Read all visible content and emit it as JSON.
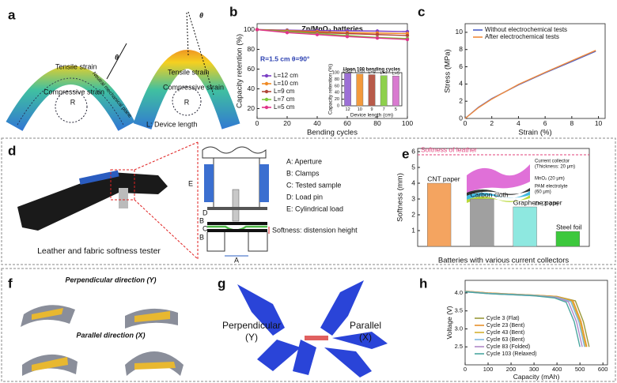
{
  "panel_labels": [
    "a",
    "b",
    "c",
    "d",
    "e",
    "f",
    "g",
    "h"
  ],
  "panel_a": {
    "tensile": "Tensile strain",
    "compressive": "Compressive strain",
    "neutral": "Neutral mechanical plane",
    "radius": "R",
    "angle": "θ",
    "length_note": "L: Device length"
  },
  "panel_d": {
    "caption": "Leather and fabric softness tester",
    "legend": [
      "A: Aperture",
      "B: Clamps",
      "C: Tested sample",
      "D: Load pin",
      "E: Cylindrical load"
    ],
    "schematic_labels": [
      "E",
      "D",
      "B",
      "C",
      "B",
      "A"
    ],
    "softness_note": "Softness: distension height"
  },
  "panel_f": {
    "perpendicular": "Perpendicular direction (Y)",
    "parallel": "Parallel direction (X)"
  },
  "panel_g": {
    "perpendicular": [
      "Perpendicular",
      "(Y)"
    ],
    "parallel": [
      "Parallel",
      "(X)"
    ]
  },
  "chart_data": [
    {
      "type": "line",
      "title": "Zn/MnO₂ batteries",
      "x_label": "Bending cycles",
      "y_label": "Capacity retention (%)",
      "annotation": "R=1.5 cm θ=90°",
      "markers": true,
      "x": [
        0,
        20,
        40,
        60,
        80,
        100
      ],
      "xlim": [
        0,
        100
      ],
      "xticks": [
        0,
        20,
        40,
        60,
        80,
        100
      ],
      "ylim": [
        10,
        106
      ],
      "yticks": [
        20,
        40,
        60,
        80,
        100
      ],
      "series": [
        {
          "name": "L=12 cm",
          "color": "#7b3fc4",
          "values": [
            100,
            99.5,
            99,
            98.8,
            98.5,
            98
          ]
        },
        {
          "name": "L=10 cm",
          "color": "#f08a24",
          "values": [
            100,
            99,
            98,
            97,
            96.5,
            96
          ]
        },
        {
          "name": "L=9 cm",
          "color": "#b0473a",
          "values": [
            100,
            98.5,
            97,
            96,
            95,
            94
          ]
        },
        {
          "name": "L=7 cm",
          "color": "#7cc83a",
          "values": [
            100,
            98,
            96,
            94,
            92,
            91
          ]
        },
        {
          "name": "L=5 cm",
          "color": "#e0348a",
          "values": [
            100,
            97,
            95,
            93,
            91.5,
            90
          ]
        }
      ]
    },
    {
      "type": "bar",
      "title": "Upon 100 bending cycles",
      "x_label": "Device length (cm)",
      "y_label": "Capacity retention (%)",
      "categories": [
        "12",
        "10",
        "9",
        "7",
        "5"
      ],
      "bar_labels": [
        "L=12",
        "L=10",
        "L=9",
        "L=7",
        "L=5"
      ],
      "values": [
        98,
        96,
        94,
        91,
        90
      ],
      "colors": [
        "#9c6fd6",
        "#f39a3c",
        "#b85a4a",
        "#8ed04c",
        "#d97ad0"
      ],
      "ylim": [
        0,
        100
      ],
      "yticks": [
        0,
        20,
        40,
        60,
        80,
        100
      ]
    },
    {
      "type": "line",
      "x_label": "Strain (%)",
      "y_label": "Stress (MPa)",
      "x": [
        0,
        1,
        2,
        4,
        6,
        8,
        9.8
      ],
      "xlim": [
        0,
        10.5
      ],
      "xticks": [
        0,
        2,
        4,
        6,
        8,
        10
      ],
      "ylim": [
        0,
        11
      ],
      "yticks": [
        0,
        2,
        4,
        6,
        8,
        10
      ],
      "series": [
        {
          "name": "Without electrochemical tests",
          "color": "#4b5fc8",
          "values": [
            0,
            1.3,
            2.3,
            3.9,
            5.3,
            6.6,
            7.8
          ]
        },
        {
          "name": "After electrochemical tests",
          "color": "#f08a3c",
          "values": [
            0,
            1.25,
            2.25,
            3.95,
            5.35,
            6.7,
            7.9
          ]
        }
      ]
    },
    {
      "type": "bar",
      "x_label": "Batteries with various current collectors",
      "y_label": "Softness (mm)",
      "categories": [
        "CNT paper",
        "Carbon cloth",
        "Graphene paper",
        "Steel foil"
      ],
      "values": [
        4,
        3,
        2.5,
        0.95
      ],
      "colors": [
        "#f4a460",
        "#a0a0a0",
        "#8ee8e0",
        "#3cc83c"
      ],
      "reference": {
        "label": "Softness of leather",
        "value": 5.8
      },
      "layer_labels": [
        "Current collector",
        "(Thickness: 20 μm)",
        "MnO₂ (20 μm)",
        "PAM electrolyte",
        "(60 μm)",
        "Zn (20 μm)"
      ],
      "ylim": [
        0,
        6.2
      ],
      "yticks": [
        1,
        2,
        3,
        4,
        5,
        6
      ]
    },
    {
      "type": "line",
      "x_label": "Capacity (mAh)",
      "y_label": "Voltage (V)",
      "xlim": [
        0,
        620
      ],
      "xticks": [
        0,
        100,
        200,
        300,
        400,
        500,
        600
      ],
      "ylim": [
        2.0,
        4.35
      ],
      "yticks": [
        2.5,
        {
          "value": 3,
          "label": "3.0"
        },
        3.5,
        {
          "value": 4,
          "label": "4.0"
        }
      ],
      "series": [
        {
          "name": "Cycle 3 (Flat)",
          "color": "#9a9a3a",
          "x": [
            0,
            100,
            200,
            300,
            400,
            480,
            515,
            540
          ],
          "values": [
            4.05,
            4.0,
            3.97,
            3.94,
            3.9,
            3.78,
            3.2,
            2.5
          ]
        },
        {
          "name": "Cycle 23 (Bent)",
          "color": "#e8902a",
          "x": [
            0,
            100,
            200,
            300,
            400,
            470,
            505,
            530
          ],
          "values": [
            4.05,
            4.0,
            3.97,
            3.94,
            3.9,
            3.78,
            3.2,
            2.5
          ]
        },
        {
          "name": "Cycle 43 (Bent)",
          "color": "#d4b030",
          "x": [
            0,
            100,
            200,
            300,
            400,
            465,
            500,
            525
          ],
          "values": [
            4.04,
            3.99,
            3.96,
            3.93,
            3.89,
            3.77,
            3.2,
            2.5
          ]
        },
        {
          "name": "Cycle 63 (Bent)",
          "color": "#7db7e0",
          "x": [
            0,
            100,
            200,
            300,
            400,
            460,
            495,
            520
          ],
          "values": [
            4.04,
            3.99,
            3.96,
            3.93,
            3.88,
            3.76,
            3.2,
            2.5
          ]
        },
        {
          "name": "Cycle 83 (Folded)",
          "color": "#b088c8",
          "x": [
            0,
            100,
            200,
            300,
            400,
            450,
            485,
            510
          ],
          "values": [
            4.03,
            3.98,
            3.95,
            3.92,
            3.87,
            3.75,
            3.2,
            2.5
          ]
        },
        {
          "name": "Cycle 103 (Relaxed)",
          "color": "#4aa6a0",
          "x": [
            0,
            100,
            200,
            300,
            390,
            440,
            475,
            500
          ],
          "values": [
            4.03,
            3.98,
            3.95,
            3.92,
            3.86,
            3.74,
            3.2,
            2.5
          ]
        }
      ]
    }
  ]
}
